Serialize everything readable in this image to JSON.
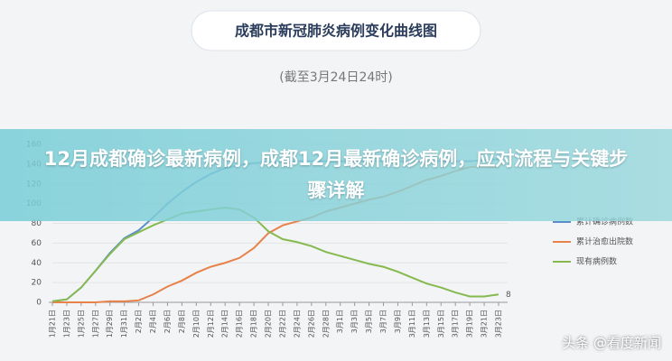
{
  "chart_data": {
    "type": "line",
    "title": "成都市新冠肺炎病例变化曲线图",
    "subtitle": "(截至3月24日24时)",
    "categories": [
      "1月21日",
      "1月23日",
      "1月25日",
      "1月27日",
      "1月29日",
      "1月31日",
      "2月2日",
      "2月4日",
      "2月6日",
      "2月8日",
      "2月10日",
      "2月12日",
      "2月14日",
      "2月16日",
      "2月18日",
      "2月20日",
      "2月22日",
      "2月24日",
      "2月26日",
      "2月28日",
      "3月1日",
      "3月3日",
      "3月5日",
      "3月7日",
      "3月9日",
      "3月11日",
      "3月13日",
      "3月15日",
      "3月17日",
      "3月19日",
      "3月21日",
      "3月23日"
    ],
    "series": [
      {
        "name": "累计确诊病例数",
        "color": "#5b8fc9",
        "values": [
          1,
          3,
          15,
          32,
          50,
          65,
          73,
          86,
          100,
          112,
          122,
          130,
          136,
          139,
          141,
          142,
          142,
          143,
          143,
          143,
          143,
          143,
          143,
          143,
          143,
          143,
          143,
          143,
          143,
          143,
          144,
          145
        ]
      },
      {
        "name": "累计治愈出院数",
        "color": "#e8824a",
        "values": [
          0,
          0,
          0,
          0,
          1,
          1,
          2,
          8,
          16,
          22,
          30,
          36,
          40,
          45,
          55,
          70,
          78,
          82,
          86,
          92,
          96,
          100,
          104,
          107,
          112,
          118,
          124,
          128,
          133,
          137,
          138,
          137
        ]
      },
      {
        "name": "现有病例数",
        "color": "#86b94f",
        "values": [
          1,
          3,
          15,
          32,
          49,
          64,
          71,
          78,
          84,
          90,
          92,
          94,
          96,
          94,
          86,
          72,
          64,
          61,
          57,
          51,
          47,
          43,
          39,
          36,
          31,
          25,
          19,
          15,
          10,
          6,
          6,
          8
        ]
      }
    ],
    "ylim": [
      0,
      160
    ],
    "yticks": [
      0,
      20,
      40,
      60,
      80,
      100,
      120,
      140,
      160
    ],
    "grid": true,
    "legend": "right"
  },
  "banner": {
    "text": "12月成都确诊最新病例，成都12月最新确诊病例，应对流程与关键步骤详解"
  },
  "watermark": "头条 @看度新闻"
}
